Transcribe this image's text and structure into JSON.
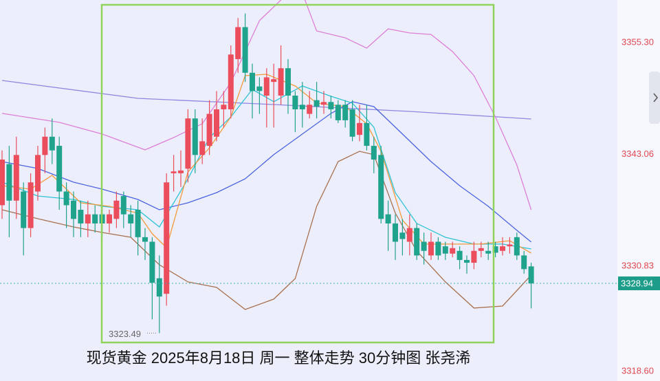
{
  "chart_data": {
    "type": "candlestick",
    "title": "现货黄金 2025年8月18日 周一 整体走势 30分钟图 张尧浠",
    "ylim": [
      3318.25,
      3359.97
    ],
    "yticks": [
      {
        "value": 3355.3,
        "label": "3355.30"
      },
      {
        "value": 3343.06,
        "label": "3343.06"
      },
      {
        "value": 3330.83,
        "label": "3330.83"
      },
      {
        "value": 3318.6,
        "label": "3318.60"
      }
    ],
    "grid": false,
    "up_color": "#eb4d5c",
    "down_color": "#1fa38c",
    "last_price": {
      "value": 3328.94,
      "label": "3328.94"
    },
    "low_marker": {
      "value": 3323.49,
      "label": "3323.49"
    },
    "open": [
      3337.5,
      3342,
      3338,
      3339,
      3335,
      3339,
      3343,
      3345,
      3344,
      3339,
      3338,
      3337,
      3335.5,
      3336.5,
      3336.5,
      3335.5,
      3336,
      3338.5,
      3336.5,
      3337,
      3334,
      3333.5,
      3329.5,
      3327.8,
      3341,
      3341,
      3341.5,
      3347,
      3343,
      3344,
      3345,
      3348,
      3348,
      3353.5,
      3357,
      3352,
      3350.5,
      3349.5,
      3351,
      3349.5,
      3352.5,
      3349.5,
      3348.5,
      3347.5,
      3349,
      3348.5,
      3348.8,
      3348.5,
      3348.5,
      3348,
      3345.2,
      3346.5,
      3344,
      3343,
      3336.5,
      3335.5,
      3334.5,
      3333.5,
      3335,
      3333.5,
      3332,
      3333.5,
      3333,
      3332.2,
      3332.5,
      3331.5,
      3331.2,
      3332.5,
      3332.5,
      3333,
      3332.5,
      3333,
      3334,
      3332,
      3330.8
    ],
    "high": [
      3343.5,
      3344,
      3345,
      3340,
      3341,
      3344,
      3346,
      3347,
      3345,
      3340,
      3339,
      3338,
      3338,
      3337.5,
      3338,
      3337,
      3339,
      3339,
      3337.5,
      3338,
      3335,
      3334,
      3332,
      3341,
      3343,
      3343.5,
      3348,
      3348,
      3347,
      3349,
      3350,
      3350,
      3355,
      3358,
      3358.5,
      3353,
      3351.5,
      3352.5,
      3353,
      3355,
      3353.5,
      3350,
      3351,
      3350,
      3351,
      3350,
      3349.5,
      3349,
      3349,
      3349,
      3348.5,
      3348.5,
      3345,
      3344,
      3338,
      3336.5,
      3336,
      3336.5,
      3335.5,
      3334.5,
      3334.5,
      3334,
      3333.5,
      3333.5,
      3333,
      3332,
      3333.5,
      3333.5,
      3333.5,
      3333.5,
      3334,
      3334,
      3334.5,
      3332.5,
      3331.2
    ],
    "low": [
      3336,
      3334,
      3336,
      3332,
      3334,
      3338,
      3341,
      3342,
      3337,
      3335,
      3334,
      3334,
      3334,
      3334.5,
      3334,
      3334.5,
      3335,
      3335,
      3334,
      3332,
      3331.5,
      3325,
      3323.49,
      3326.5,
      3339,
      3339.5,
      3340,
      3341,
      3342,
      3343,
      3344.5,
      3346,
      3347,
      3352,
      3351,
      3347,
      3347.5,
      3346,
      3346,
      3348.5,
      3347.5,
      3345.5,
      3346,
      3347,
      3347,
      3347.5,
      3347,
      3346.5,
      3346,
      3344.5,
      3344.5,
      3343.5,
      3341,
      3335.5,
      3332.5,
      3331.5,
      3332,
      3332,
      3331.5,
      3331,
      3331.5,
      3331.5,
      3331.5,
      3331.8,
      3330.5,
      3330,
      3330.5,
      3331.8,
      3331.5,
      3331.8,
      3332,
      3332.2,
      3331.5,
      3330,
      3326.2
    ],
    "close": [
      3342.5,
      3338,
      3343,
      3335,
      3340,
      3343,
      3345,
      3343.5,
      3339,
      3337.5,
      3336,
      3335.5,
      3336.5,
      3335.5,
      3335.5,
      3336.5,
      3338,
      3336.5,
      3335.5,
      3334,
      3333.5,
      3329,
      3327.5,
      3340,
      3341.2,
      3341.3,
      3347,
      3343,
      3344.5,
      3347.5,
      3348,
      3348.5,
      3354,
      3357,
      3352,
      3350,
      3350,
      3351.5,
      3351.3,
      3352.5,
      3349.5,
      3348,
      3348,
      3348.5,
      3348.3,
      3348.8,
      3348,
      3346.8,
      3346.8,
      3345,
      3346.5,
      3344,
      3342.5,
      3336,
      3335.5,
      3333.5,
      3333.8,
      3335,
      3332,
      3332.5,
      3333.5,
      3332,
      3332.2,
      3332.8,
      3331.5,
      3331.2,
      3332.5,
      3332.8,
      3332.2,
      3332.3,
      3333,
      3333.2,
      3332,
      3330.5,
      3328.94
    ],
    "lines": [
      {
        "color": "#8f86e0",
        "x": [
          0,
          19,
          38,
          57,
          74
        ],
        "values": [
          3351.16,
          3349.2,
          3348.52,
          3347.77,
          3346.94
        ]
      },
      {
        "color": "#de7fd8",
        "x": [
          0,
          8,
          14,
          20,
          24,
          28,
          32,
          36,
          40,
          42,
          44,
          48,
          51,
          54,
          57,
          60,
          63,
          66,
          69,
          72,
          74
        ],
        "values": [
          3347.55,
          3346.57,
          3345.29,
          3343.56,
          3344.91,
          3346.42,
          3350.93,
          3357.71,
          3360.72,
          3360.72,
          3356.58,
          3355.83,
          3354.7,
          3356.81,
          3356.36,
          3356.2,
          3354.32,
          3351.69,
          3347.17,
          3341.9,
          3337
        ]
      },
      {
        "color": "#a8704f",
        "x": [
          0,
          5,
          10,
          14,
          18,
          22,
          26,
          30,
          34,
          38,
          41,
          44,
          47,
          50,
          52,
          55,
          58,
          62,
          66,
          70,
          74
        ],
        "values": [
          3337,
          3336.02,
          3335.12,
          3334.52,
          3333.99,
          3330.98,
          3329.1,
          3328.5,
          3326.08,
          3327.22,
          3329.47,
          3337.38,
          3342.27,
          3343.4,
          3343.03,
          3336.63,
          3332.49,
          3329.1,
          3326.24,
          3326.46,
          3329.85
        ]
      },
      {
        "color": "#4a63e0",
        "x": [
          0,
          5,
          10,
          14,
          19,
          22,
          26,
          30,
          34,
          38,
          42,
          46,
          49,
          52,
          56,
          60,
          64,
          68,
          72,
          74
        ],
        "values": [
          3342.27,
          3341.52,
          3340.02,
          3339.26,
          3338.13,
          3337,
          3337.76,
          3338.88,
          3340.39,
          3343.03,
          3345.29,
          3347.55,
          3348.83,
          3348.3,
          3345.29,
          3342.27,
          3339.64,
          3337.38,
          3334.75,
          3333.47
        ]
      },
      {
        "color": "#2ec4d6",
        "x": [
          0,
          5,
          10,
          14,
          19,
          22,
          26,
          29,
          32,
          35,
          38,
          42,
          46,
          49,
          52,
          55,
          58,
          62,
          66,
          70,
          74
        ],
        "values": [
          3340.02,
          3338.51,
          3338.13,
          3337.38,
          3337,
          3335.12,
          3340.39,
          3344.91,
          3347.17,
          3350.18,
          3348.83,
          3350.56,
          3349.43,
          3348.68,
          3346.04,
          3338.88,
          3335.5,
          3333.99,
          3333.24,
          3333.24,
          3332.71
        ]
      },
      {
        "color": "#f39a3a",
        "x": [
          0,
          4,
          7,
          11,
          15,
          19,
          21,
          23,
          26,
          29,
          32,
          34,
          37,
          41,
          44,
          48,
          51,
          53,
          56,
          59,
          63,
          67,
          71,
          74
        ],
        "values": [
          3339.64,
          3339.26,
          3340.77,
          3337.76,
          3337.38,
          3336.63,
          3334.37,
          3332.86,
          3341.14,
          3343.78,
          3347.17,
          3351.69,
          3351.84,
          3350.56,
          3348.68,
          3348.3,
          3346.42,
          3343.4,
          3335.87,
          3333.24,
          3333.24,
          3333.24,
          3333.61,
          3332.26
        ]
      }
    ]
  }
}
